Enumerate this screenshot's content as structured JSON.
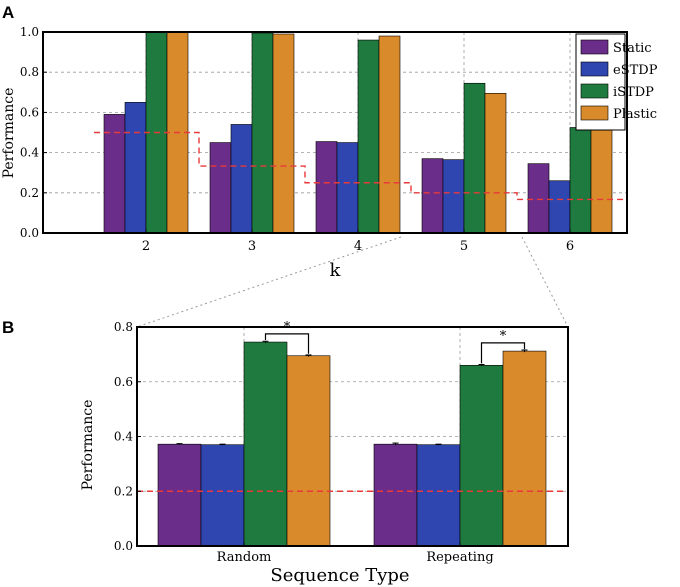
{
  "colors": {
    "static": "#6a2d8a",
    "estdp": "#2f46b0",
    "istdp": "#1e7a3e",
    "plastic": "#d98a2a",
    "chance": "#e83a3a",
    "grid": "#9a9a9a",
    "connector": "#9a9a9a",
    "axis": "#000000"
  },
  "chart_data": [
    {
      "panel": "A",
      "type": "bar",
      "panel_label": "A",
      "xlabel": "k",
      "ylabel": "Performance",
      "categories": [
        "2",
        "3",
        "4",
        "5",
        "6"
      ],
      "ylim": [
        0,
        1.0
      ],
      "yticks": [
        "0.0",
        "0.2",
        "0.4",
        "0.6",
        "0.8",
        "1.0"
      ],
      "grid": true,
      "legend_position": "top-right",
      "series": [
        {
          "name": "Static",
          "key": "static",
          "values": [
            0.59,
            0.45,
            0.455,
            0.37,
            0.345
          ]
        },
        {
          "name": "eSTDP",
          "key": "estdp",
          "values": [
            0.65,
            0.54,
            0.45,
            0.365,
            0.26
          ]
        },
        {
          "name": "iSTDP",
          "key": "istdp",
          "values": [
            1.0,
            0.995,
            0.96,
            0.745,
            0.525
          ]
        },
        {
          "name": "Plastic",
          "key": "plastic",
          "values": [
            1.0,
            0.99,
            0.98,
            0.695,
            0.54
          ]
        }
      ],
      "chance_levels": [
        0.5,
        0.333,
        0.25,
        0.2,
        0.167
      ]
    },
    {
      "panel": "B",
      "type": "bar",
      "panel_label": "B",
      "xlabel": "Sequence Type",
      "ylabel": "Performance",
      "categories": [
        "Random",
        "Repeating"
      ],
      "ylim": [
        0,
        0.8
      ],
      "yticks": [
        "0.0",
        "0.2",
        "0.4",
        "0.6",
        "0.8"
      ],
      "grid": true,
      "series": [
        {
          "name": "Static",
          "key": "static",
          "values": [
            0.372,
            0.372
          ],
          "errors": [
            0.002,
            0.004
          ]
        },
        {
          "name": "eSTDP",
          "key": "estdp",
          "values": [
            0.37,
            0.37
          ],
          "errors": [
            0.002,
            0.002
          ]
        },
        {
          "name": "iSTDP",
          "key": "istdp",
          "values": [
            0.745,
            0.66
          ],
          "errors": [
            0.003,
            0.003
          ]
        },
        {
          "name": "Plastic",
          "key": "plastic",
          "values": [
            0.695,
            0.712
          ],
          "errors": [
            0.003,
            0.004
          ]
        }
      ],
      "chance_level": 0.2,
      "significance": [
        {
          "category": "Random",
          "between": [
            "iSTDP",
            "Plastic"
          ],
          "label": "*"
        },
        {
          "category": "Repeating",
          "between": [
            "iSTDP",
            "Plastic"
          ],
          "label": "*"
        }
      ]
    }
  ]
}
